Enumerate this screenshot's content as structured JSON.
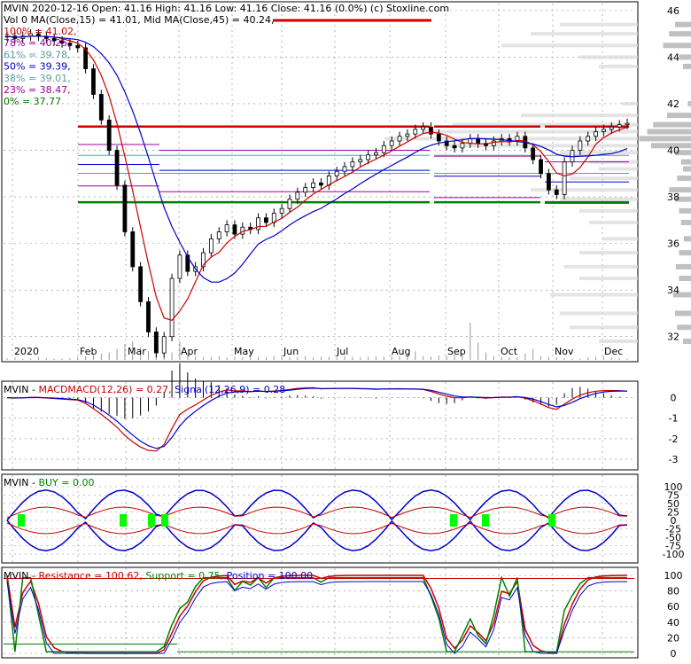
{
  "colors": {
    "price": "#000000",
    "ma_fast": "#cc0000",
    "ma_slow": "#0000cc",
    "green": "#008000",
    "fib_line": "#a000a0",
    "buy": "#00ff00",
    "grid": "#888888",
    "volume_profile": "#c0c0c0"
  },
  "header": {
    "line1": "MVIN  2020-12-16 Open: 41.16  High: 41.16  Low: 41.16  Close: 41.16 (0.0%)  (c) Stoxline.com",
    "line2": "Vol 0  MA(Close,15) = 41.01, Mid MA(Close,45) = 40.24,"
  },
  "fib_levels": [
    {
      "label": "100% = 41.02,",
      "value": 41.02,
      "color": "#cc0000"
    },
    {
      "label": "78% = 40.25,",
      "value": 40.25,
      "color": "#a000a0"
    },
    {
      "label": "61% = 39.78,",
      "value": 39.78,
      "color": "#5f9ea0"
    },
    {
      "label": "50% = 39.39,",
      "value": 39.39,
      "color": "#0000cc"
    },
    {
      "label": "38% = 39.01,",
      "value": 39.01,
      "color": "#5f9ea0"
    },
    {
      "label": "23% = 38.47,",
      "value": 38.47,
      "color": "#a000a0"
    },
    {
      "label": "0% = 37.77",
      "value": 37.77,
      "color": "#008000"
    }
  ],
  "macd_panel": {
    "label_ticker": "MVIN - ",
    "label_macd": "MACDMACD(12,26) = 0.27, ",
    "label_signal": "Signal(12,26,9) = 0.28",
    "y_ticks": [
      "0",
      "-1",
      "-2",
      "-3"
    ]
  },
  "buy_panel": {
    "label_ticker": "MVIN - ",
    "label_buy": "BUY = 0.00",
    "y_ticks": [
      "100",
      "75",
      "50",
      "25",
      "0",
      "-25",
      "-50",
      "-75",
      "-100"
    ]
  },
  "rs_panel": {
    "label_ticker": "MVIN - ",
    "label_resistance": "Resistance = 100.62, ",
    "label_support": "Support = 0.75, ",
    "label_position": "Position = 100.00",
    "y_ticks": [
      "100",
      "80",
      "60",
      "40",
      "20",
      "0"
    ]
  },
  "chart_data": {
    "type": "candlestick",
    "ticker": "MVIN",
    "x_ticks": [
      "2020",
      "Feb",
      "Mar",
      "Apr",
      "May",
      "Jun",
      "Jul",
      "Aug",
      "Sep",
      "Oct",
      "Nov",
      "Dec"
    ],
    "y_ticks": [
      "46",
      "44",
      "42",
      "40",
      "38",
      "36",
      "34",
      "32"
    ],
    "ylim": [
      31,
      46.3
    ],
    "close_approx": [
      44.9,
      44.8,
      44.9,
      45.0,
      44.9,
      44.8,
      44.7,
      44.6,
      44.5,
      44.4,
      43.5,
      42.4,
      41.3,
      40.0,
      38.5,
      36.5,
      35.0,
      33.5,
      32.2,
      31.3,
      32.0,
      34.5,
      35.5,
      34.8,
      35.0,
      35.6,
      36.2,
      36.5,
      36.8,
      36.4,
      36.7,
      36.6,
      37.1,
      36.9,
      37.3,
      37.5,
      37.9,
      38.2,
      38.4,
      38.6,
      38.5,
      38.9,
      39.1,
      39.3,
      39.5,
      39.6,
      39.8,
      39.9,
      40.2,
      40.4,
      40.6,
      40.7,
      40.9,
      41.0,
      40.7,
      40.4,
      40.2,
      40.1,
      40.3,
      40.5,
      40.3,
      40.2,
      40.4,
      40.5,
      40.4,
      40.6,
      40.1,
      39.6,
      39.0,
      38.3,
      38.1,
      39.5,
      40.0,
      40.4,
      40.6,
      40.8,
      40.9,
      41.0,
      41.1,
      41.16
    ],
    "fib_levels": [
      41.02,
      40.25,
      39.78,
      39.39,
      39.01,
      38.47,
      37.77
    ],
    "ma15": 41.01,
    "ma45": 40.24,
    "macd": 0.27,
    "signal": 0.28,
    "buy": 0.0,
    "resistance": 100.62,
    "support": 0.75,
    "position": 100.0
  }
}
